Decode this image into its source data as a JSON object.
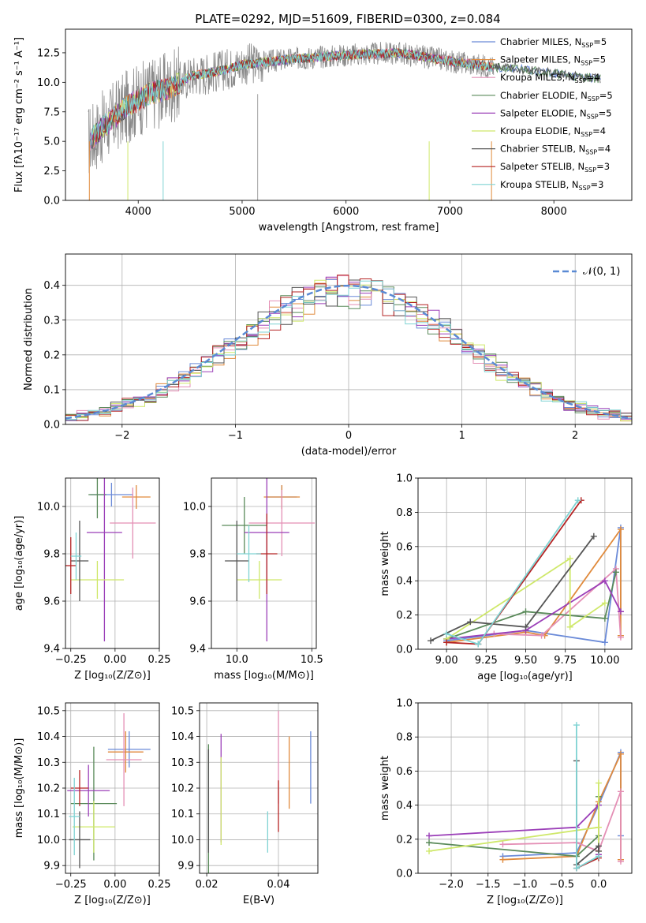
{
  "colors": [
    "#6a8ad8",
    "#e08a3c",
    "#e48fb5",
    "#5a8a5a",
    "#9b3fb8",
    "#cfe86a",
    "#555555",
    "#b52424",
    "#7fd3d3"
  ],
  "chart_data": [
    {
      "id": "spectrum",
      "type": "line",
      "title": "PLATE=0292, MJD=51609, FIBERID=0300, z=0.084",
      "xlabel": "wavelength [Angstrom, rest frame]",
      "ylabel": "Flux [fλ10⁻¹⁷ erg cm⁻² s⁻¹ A⁻¹]",
      "xlim": [
        3300,
        8750
      ],
      "ylim": [
        0,
        14.5
      ],
      "xticks": [
        "4000",
        "5000",
        "6000",
        "7000",
        "8000"
      ],
      "yticks": [
        "0.0",
        "2.5",
        "5.0",
        "7.5",
        "10.0",
        "12.5"
      ],
      "legend_position": "top-right",
      "legend": [
        "Chabrier MILES, N",
        "Salpeter MILES, N",
        "Kroupa MILES, N",
        "Chabrier ELODIE, N",
        "Salpeter ELODIE, N",
        "Kroupa ELODIE, N",
        "Chabrier STELIB, N",
        "Salpeter STELIB, N",
        "Kroupa STELIB, N"
      ],
      "legend_sub": "SSP",
      "legend_counts": [
        "=5",
        "=5",
        "=4",
        "=5",
        "=5",
        "=4",
        "=4",
        "=3",
        "=3"
      ],
      "continuum": [
        [
          3520,
          5.0
        ],
        [
          3700,
          6.5
        ],
        [
          3900,
          8.0
        ],
        [
          4100,
          9.0
        ],
        [
          4300,
          9.5
        ],
        [
          4500,
          10.5
        ],
        [
          4800,
          11.0
        ],
        [
          5000,
          11.5
        ],
        [
          5500,
          12.0
        ],
        [
          6000,
          12.3
        ],
        [
          6500,
          12.5
        ],
        [
          7000,
          11.8
        ],
        [
          7400,
          11.3
        ],
        [
          7800,
          11.0
        ],
        [
          8200,
          10.5
        ],
        [
          8450,
          10.3
        ]
      ]
    },
    {
      "id": "residuals",
      "type": "line",
      "xlabel": "(data-model)/error",
      "ylabel": "Normed distribution",
      "xlim": [
        -2.5,
        2.5
      ],
      "ylim": [
        0,
        0.49
      ],
      "xticks": [
        "−2",
        "−1",
        "0",
        "1",
        "2"
      ],
      "yticks": [
        "0.0",
        "0.1",
        "0.2",
        "0.3",
        "0.4"
      ],
      "legend": "𝒩(0, 1)",
      "legend_position": "top-right",
      "grid": true
    },
    {
      "id": "age-Z",
      "type": "errorbar",
      "xlabel": "Z [log₁₀(Z/Z⊙)]",
      "ylabel": "age  [log₁₀(age/yr)]",
      "xlim": [
        -0.28,
        0.25
      ],
      "ylim": [
        9.4,
        10.12
      ],
      "xticks": [
        "−0.25",
        "0.00",
        "0.25"
      ],
      "yticks": [
        "9.4",
        "9.6",
        "9.8",
        "10.0"
      ],
      "grid": true,
      "points": [
        [
          -0.02,
          10.05,
          0.12,
          0.05
        ],
        [
          0.12,
          10.04,
          0.08,
          0.05
        ],
        [
          0.1,
          9.93,
          0.13,
          0.15
        ],
        [
          -0.1,
          10.05,
          0.05,
          0.1
        ],
        [
          -0.06,
          9.89,
          0.1,
          0.46
        ],
        [
          -0.1,
          9.69,
          0.15,
          0.08
        ],
        [
          -0.2,
          9.77,
          0.05,
          0.17
        ],
        [
          -0.25,
          9.75,
          0.03,
          0.12
        ],
        [
          -0.22,
          9.79,
          0.03,
          0.1
        ]
      ]
    },
    {
      "id": "age-mass",
      "type": "errorbar",
      "xlabel": "mass [log₁₀(M/M⊙)]",
      "ylabel": "",
      "xlim": [
        9.83,
        10.53
      ],
      "ylim": [
        9.4,
        10.12
      ],
      "xticks": [
        "10.0",
        "10.5"
      ],
      "yticks": [
        "9.4",
        "9.6",
        "9.8",
        "10.0"
      ],
      "grid": true,
      "points": [
        [
          10.3,
          10.04,
          0.1,
          0.05
        ],
        [
          10.3,
          10.04,
          0.12,
          0.05
        ],
        [
          10.3,
          9.93,
          0.22,
          0.14
        ],
        [
          10.05,
          9.92,
          0.15,
          0.12
        ],
        [
          10.2,
          9.89,
          0.15,
          0.46
        ],
        [
          10.15,
          9.69,
          0.15,
          0.08
        ],
        [
          10.0,
          9.77,
          0.08,
          0.17
        ],
        [
          10.2,
          9.8,
          0.07,
          0.17
        ],
        [
          10.08,
          9.8,
          0.08,
          0.12
        ]
      ]
    },
    {
      "id": "weight-age",
      "type": "line",
      "xlabel": "age  [log₁₀(age/yr)]",
      "ylabel": "mass weight",
      "xlim": [
        8.82,
        10.17
      ],
      "ylim": [
        0,
        1.0
      ],
      "xticks": [
        "9.00",
        "9.25",
        "9.50",
        "9.75",
        "10.00"
      ],
      "yticks": [
        "0.0",
        "0.2",
        "0.4",
        "0.6",
        "0.8",
        "1.0"
      ],
      "grid": true,
      "series": [
        {
          "values": [
            [
              9.0,
              0.05
            ],
            [
              9.5,
              0.11
            ],
            [
              10.0,
              0.04
            ],
            [
              10.1,
              0.71
            ],
            [
              10.1,
              0.22
            ]
          ]
        },
        {
          "values": [
            [
              9.0,
              0.04
            ],
            [
              9.5,
              0.1
            ],
            [
              9.62,
              0.08
            ],
            [
              10.1,
              0.7
            ],
            [
              10.1,
              0.08
            ]
          ]
        },
        {
          "values": [
            [
              9.3,
              0.09
            ],
            [
              9.6,
              0.08
            ],
            [
              10.07,
              0.47
            ],
            [
              10.1,
              0.07
            ]
          ]
        },
        {
          "values": [
            [
              9.0,
              0.06
            ],
            [
              9.5,
              0.22
            ],
            [
              10.0,
              0.18
            ],
            [
              10.07,
              0.45
            ]
          ]
        },
        {
          "values": [
            [
              9.0,
              0.06
            ],
            [
              9.5,
              0.11
            ],
            [
              10.0,
              0.4
            ],
            [
              10.1,
              0.22
            ]
          ]
        },
        {
          "values": [
            [
              9.0,
              0.06
            ],
            [
              9.78,
              0.53
            ],
            [
              9.78,
              0.13
            ],
            [
              10.0,
              0.27
            ]
          ]
        },
        {
          "values": [
            [
              8.9,
              0.05
            ],
            [
              9.15,
              0.16
            ],
            [
              9.5,
              0.13
            ],
            [
              9.93,
              0.66
            ]
          ]
        },
        {
          "values": [
            [
              9.0,
              0.04
            ],
            [
              9.2,
              0.03
            ],
            [
              9.85,
              0.87
            ]
          ]
        },
        {
          "values": [
            [
              9.0,
              0.09
            ],
            [
              9.2,
              0.03
            ],
            [
              9.83,
              0.87
            ]
          ]
        }
      ]
    },
    {
      "id": "mass-Z",
      "type": "errorbar",
      "xlabel": "Z [log₁₀(Z/Z⊙)]",
      "ylabel": "mass [log₁₀(M/M⊙)]",
      "xlim": [
        -0.28,
        0.25
      ],
      "ylim": [
        9.87,
        10.53
      ],
      "xticks": [
        "−0.25",
        "0.00",
        "0.25"
      ],
      "yticks": [
        "9.9",
        "10.0",
        "10.1",
        "10.2",
        "10.3",
        "10.4",
        "10.5"
      ],
      "grid": true,
      "points": [
        [
          0.08,
          10.35,
          0.12,
          0.07
        ],
        [
          0.06,
          10.34,
          0.1,
          0.08
        ],
        [
          0.05,
          10.31,
          0.1,
          0.18
        ],
        [
          -0.12,
          10.14,
          0.13,
          0.22
        ],
        [
          -0.15,
          10.19,
          0.12,
          0.1
        ],
        [
          -0.12,
          10.05,
          0.12,
          0.1
        ],
        [
          -0.2,
          10.0,
          0.06,
          0.11
        ],
        [
          -0.2,
          10.2,
          0.05,
          0.07
        ],
        [
          -0.23,
          10.09,
          0.03,
          0.15
        ]
      ]
    },
    {
      "id": "mass-EBV",
      "type": "errorbar",
      "xlabel": "E(B-V)",
      "ylabel": "",
      "xlim": [
        0.018,
        0.051
      ],
      "ylim": [
        9.87,
        10.53
      ],
      "xticks": [
        "0.02",
        "0.04"
      ],
      "yticks": [
        "9.9",
        "10.0",
        "10.1",
        "10.2",
        "10.3",
        "10.4",
        "10.5"
      ],
      "grid": true,
      "points": [
        [
          0.049,
          10.28,
          0,
          0.14
        ],
        [
          0.043,
          10.26,
          0,
          0.14
        ],
        [
          0.04,
          10.32,
          0,
          0.18
        ],
        [
          0.0205,
          10.1,
          0,
          0.27
        ],
        [
          0.024,
          10.2,
          0,
          0.21
        ],
        [
          0.024,
          10.15,
          0,
          0.17
        ],
        [
          0.0205,
          10.15,
          0,
          0.2
        ],
        [
          0.04,
          10.13,
          0,
          0.1
        ],
        [
          0.037,
          10.03,
          0,
          0.08
        ]
      ]
    },
    {
      "id": "weight-Z",
      "type": "line",
      "xlabel": "Z [log₁₀(Z/Z⊙)]",
      "ylabel": "mass weight",
      "xlim": [
        -2.45,
        0.45
      ],
      "ylim": [
        0,
        1.0
      ],
      "xticks": [
        "−2.0",
        "−1.5",
        "−1.0",
        "−0.5",
        "0.0"
      ],
      "yticks": [
        "0.0",
        "0.2",
        "0.4",
        "0.6",
        "0.8",
        "1.0"
      ],
      "grid": true,
      "series": [
        {
          "values": [
            [
              -1.3,
              0.1
            ],
            [
              -0.3,
              0.12
            ],
            [
              0.0,
              0.4
            ],
            [
              0.3,
              0.71
            ],
            [
              0.3,
              0.22
            ]
          ]
        },
        {
          "values": [
            [
              -1.3,
              0.08
            ],
            [
              -0.3,
              0.1
            ],
            [
              0.0,
              0.42
            ],
            [
              0.3,
              0.7
            ],
            [
              0.3,
              0.08
            ]
          ]
        },
        {
          "values": [
            [
              -1.3,
              0.17
            ],
            [
              -0.3,
              0.18
            ],
            [
              0.0,
              0.13
            ],
            [
              0.3,
              0.48
            ],
            [
              0.3,
              0.07
            ]
          ]
        },
        {
          "values": [
            [
              -2.3,
              0.18
            ],
            [
              -0.3,
              0.1
            ],
            [
              0.0,
              0.22
            ],
            [
              0.0,
              0.45
            ]
          ]
        },
        {
          "values": [
            [
              -2.3,
              0.22
            ],
            [
              -0.3,
              0.27
            ],
            [
              0.0,
              0.4
            ],
            [
              0.0,
              0.11
            ]
          ]
        },
        {
          "values": [
            [
              -2.3,
              0.13
            ],
            [
              0.0,
              0.27
            ],
            [
              0.0,
              0.53
            ],
            [
              0.0,
              0.13
            ]
          ]
        },
        {
          "values": [
            [
              -0.3,
              0.66
            ],
            [
              -0.3,
              0.05
            ],
            [
              0.0,
              0.16
            ],
            [
              0.0,
              0.13
            ]
          ]
        },
        {
          "values": [
            [
              -0.3,
              0.03
            ],
            [
              0.0,
              0.09
            ]
          ]
        },
        {
          "values": [
            [
              -0.3,
              0.87
            ],
            [
              -0.3,
              0.03
            ],
            [
              0.0,
              0.1
            ]
          ]
        }
      ]
    }
  ]
}
